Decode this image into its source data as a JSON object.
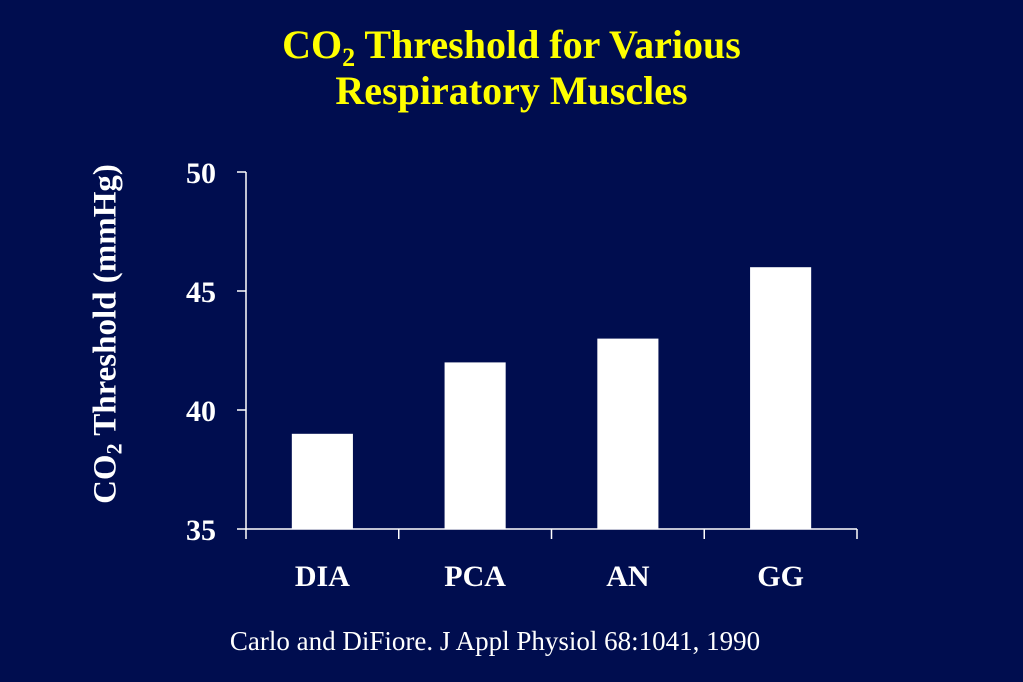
{
  "title": {
    "line1_prefix": "CO",
    "line1_sub": "2",
    "line1_suffix": " Threshold for Various",
    "line2": "Respiratory Muscles"
  },
  "ylabel": {
    "prefix": "CO",
    "sub": "2",
    "suffix": " Threshold (mmHg)"
  },
  "citation": "Carlo and DiFiore.  J Appl Physiol 68:1041, 1990",
  "colors": {
    "background": "#000d4f",
    "title": "#ffff00",
    "bars": "#ffffff",
    "text": "#ffffff"
  },
  "chart_data": {
    "type": "bar",
    "categories": [
      "DIA",
      "PCA",
      "AN",
      "GG"
    ],
    "values": [
      39,
      42,
      43,
      46
    ],
    "ylim": [
      35,
      50
    ],
    "yticks": [
      35,
      40,
      45,
      50
    ],
    "grid": false,
    "legend": "none"
  }
}
